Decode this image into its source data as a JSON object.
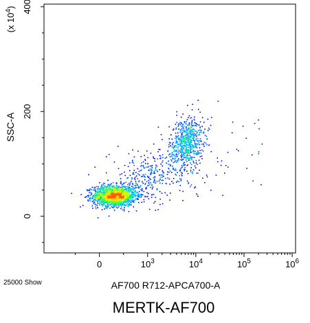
{
  "chart_data": {
    "type": "density-scatter",
    "title": "MERTK-AF700",
    "event_note": "25000 Show",
    "xlabel": "AF700 R712-APCA700-A",
    "ylabel": "SSC-A",
    "y_multiplier": "(x 10",
    "y_multiplier_exp": "4",
    "y_multiplier_close": ")",
    "x_scale": "biexponential",
    "x_ticks": [
      {
        "value": 0,
        "base": "0",
        "exp": ""
      },
      {
        "value": 1000,
        "base": "10",
        "exp": "3"
      },
      {
        "value": 10000,
        "base": "10",
        "exp": "4"
      },
      {
        "value": 100000,
        "base": "10",
        "exp": "5"
      },
      {
        "value": 1000000,
        "base": "10",
        "exp": "6"
      }
    ],
    "y_ticks": [
      {
        "value": 0,
        "label": "0"
      },
      {
        "value": 200,
        "label": "200"
      },
      {
        "value": 400,
        "label": "400"
      }
    ],
    "ylim": [
      -70,
      405
    ],
    "xlim_decades": [
      -1.15,
      4.07
    ],
    "density_colors": [
      "#0000cc",
      "#0050ff",
      "#00b0ff",
      "#00ddaa",
      "#40ff40",
      "#c8ff00",
      "#ffd800",
      "#ff6000"
    ],
    "populations": [
      {
        "name": "",
        "x_center": 0.3,
        "x_sd": 0.22,
        "y_center": 40,
        "y_sd": 10,
        "count": 1700
      },
      {
        "name": "",
        "x_center": 1.8,
        "x_sd": 0.18,
        "y_center": 140,
        "y_sd": 25,
        "count": 700
      },
      {
        "name": "",
        "x_center": 1.0,
        "x_sd": 0.4,
        "y_center": 75,
        "y_sd": 25,
        "count": 300
      }
    ]
  }
}
